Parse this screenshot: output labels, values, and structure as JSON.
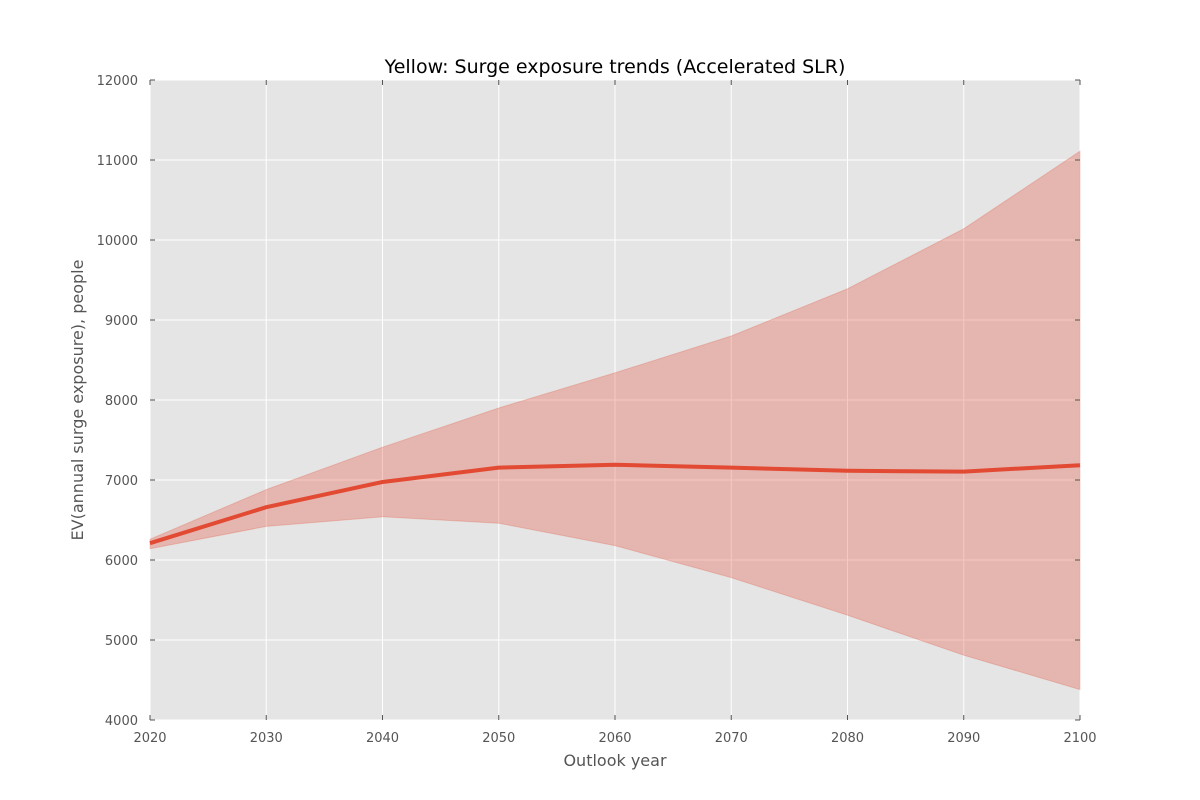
{
  "chart_data": {
    "type": "line",
    "title": "Yellow: Surge exposure trends (Accelerated SLR)",
    "xlabel": "Outlook year",
    "ylabel": "EV(annual surge exposure), people",
    "xlim": [
      2020,
      2100
    ],
    "ylim": [
      4000,
      12000
    ],
    "x_ticks": [
      2020,
      2030,
      2040,
      2050,
      2060,
      2070,
      2080,
      2090,
      2100
    ],
    "y_ticks": [
      4000,
      5000,
      6000,
      7000,
      8000,
      9000,
      10000,
      11000,
      12000
    ],
    "grid": true,
    "x": [
      2020,
      2030,
      2040,
      2050,
      2060,
      2070,
      2080,
      2090,
      2100
    ],
    "series": [
      {
        "values": [
          6210,
          6660,
          6975,
          7155,
          7190,
          7155,
          7115,
          7105,
          7185
        ],
        "color": "#e24a33"
      }
    ],
    "band": {
      "lower": [
        6140,
        6420,
        6540,
        6460,
        6180,
        5780,
        5310,
        4810,
        4380
      ],
      "upper": [
        6260,
        6880,
        7410,
        7900,
        8340,
        8800,
        9390,
        10140,
        11110
      ],
      "color": "#e24a33"
    },
    "colors": {
      "plot_background": "#e5e5e5",
      "grid": "#ffffff",
      "line": "#e24a33",
      "band_fill": "#e24a33"
    }
  }
}
